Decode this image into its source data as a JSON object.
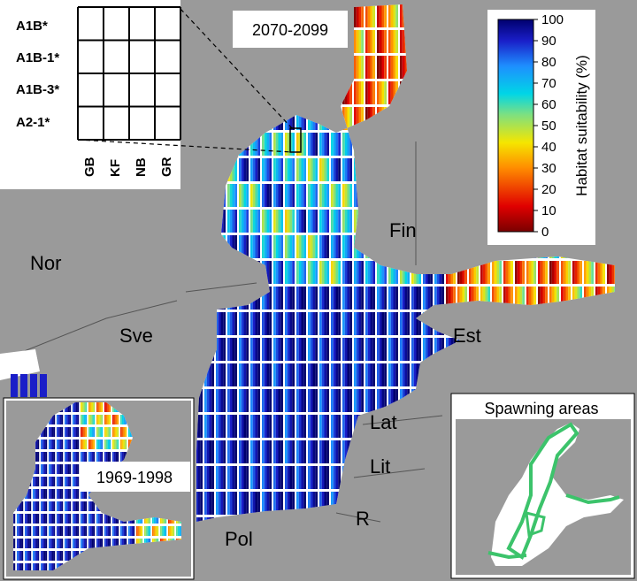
{
  "period_label": "2070-2099",
  "inset_period_label": "1969-1998",
  "spawning_title": "Spawning areas",
  "country_labels": [
    "Nor",
    "Sve",
    "Fin",
    "Est",
    "Lat",
    "Lit",
    "R",
    "Pol"
  ],
  "scenario_grid": {
    "rows": [
      "A1B*",
      "A1B-1*",
      "A1B-3*",
      "A2-1*"
    ],
    "columns": [
      "GB",
      "KF",
      "NB",
      "GR"
    ]
  },
  "colorbar": {
    "title": "Habitat suitability (%)",
    "ticks": [
      "0",
      "10",
      "20",
      "30",
      "40",
      "50",
      "60",
      "70",
      "80",
      "90",
      "100"
    ],
    "min": 0,
    "max": 100
  },
  "colors": {
    "sea_high": "#1a1ec8",
    "land": "#9a9a9a",
    "spawning": "#3cc36b",
    "panel_bg": "#ffffff"
  }
}
